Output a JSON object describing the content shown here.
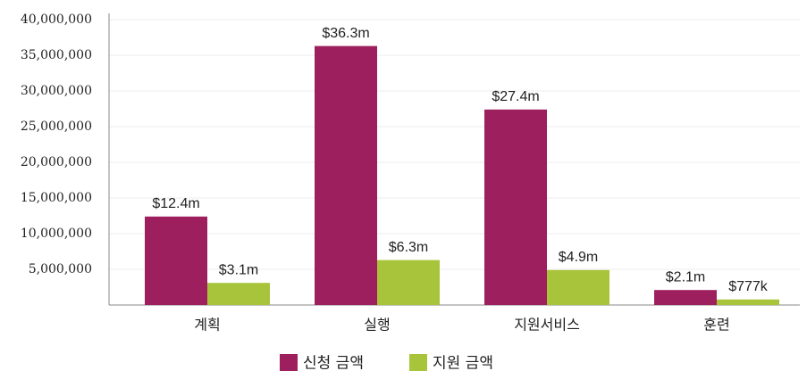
{
  "chart_data": {
    "type": "bar",
    "categories": [
      "계획",
      "실행",
      "지원서비스",
      "훈련"
    ],
    "series": [
      {
        "name": "신청 금액",
        "color": "#9e1f5e",
        "values": [
          12400000,
          36300000,
          27400000,
          2100000
        ],
        "value_labels": [
          "$12.4m",
          "$36.3m",
          "$27.4m",
          "$2.1m"
        ]
      },
      {
        "name": "지원 금액",
        "color": "#a8c43a",
        "values": [
          3100000,
          6300000,
          4900000,
          777000
        ],
        "value_labels": [
          "$3.1m",
          "$6.3m",
          "$4.9m",
          "$777k"
        ]
      }
    ],
    "ylim": [
      0,
      40000000
    ],
    "yticks": [
      {
        "value": 5000000,
        "label": "5,000,000"
      },
      {
        "value": 10000000,
        "label": "10,000,000"
      },
      {
        "value": 15000000,
        "label": "15,000,000"
      },
      {
        "value": 20000000,
        "label": "20,000,000"
      },
      {
        "value": 25000000,
        "label": "25,000,000"
      },
      {
        "value": 30000000,
        "label": "30,000,000"
      },
      {
        "value": 35000000,
        "label": "35,000,000"
      },
      {
        "value": 40000000,
        "label": "40,000,000"
      }
    ],
    "grid": true,
    "legend": "bottom"
  }
}
